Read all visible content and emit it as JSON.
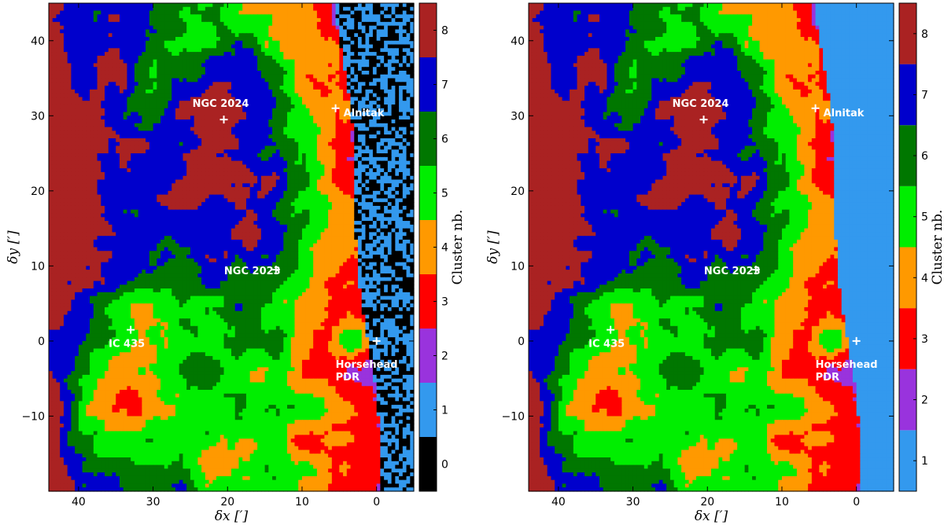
{
  "chart_data": [
    {
      "type": "heatmap",
      "panel": "left",
      "xlabel": "δx [′]",
      "ylabel": "δy [′]",
      "xlim": [
        44,
        -5
      ],
      "ylim": [
        -20,
        45
      ],
      "x_ticks": [
        40,
        30,
        20,
        10,
        0
      ],
      "y_ticks": [
        -10,
        0,
        10,
        20,
        30,
        40
      ],
      "x_tick_labels": [
        "40",
        "30",
        "20",
        "10",
        "0"
      ],
      "y_tick_labels": [
        "−10",
        "0",
        "10",
        "20",
        "30",
        "40"
      ],
      "colorbar": {
        "label": "Cluster nb.",
        "categories": [
          0,
          1,
          2,
          3,
          4,
          5,
          6,
          7,
          8
        ],
        "tick_labels": [
          "0",
          "1",
          "2",
          "3",
          "4",
          "5",
          "6",
          "7",
          "8"
        ],
        "colors": [
          "#000000",
          "#3399ee",
          "#9933dd",
          "#ff0000",
          "#ff9900",
          "#00ee00",
          "#007700",
          "#0000cc",
          "#aa2222"
        ]
      },
      "annotations": [
        {
          "label": "NGC 2024",
          "x": 20.5,
          "y": 29.5
        },
        {
          "label": "Alnitak",
          "x": 5.5,
          "y": 31
        },
        {
          "label": "NGC 2023",
          "x": 13.5,
          "y": 9.5
        },
        {
          "label": "IC 435",
          "x": 33,
          "y": 1.5
        },
        {
          "label": "Horsehead PDR",
          "label_lines": [
            "Horsehead",
            "PDR"
          ],
          "x": 0,
          "y": 0
        }
      ]
    },
    {
      "type": "heatmap",
      "panel": "right",
      "xlabel": "δx [′]",
      "ylabel": "δy [′]",
      "xlim": [
        44,
        -5
      ],
      "ylim": [
        -20,
        45
      ],
      "x_ticks": [
        40,
        30,
        20,
        10,
        0
      ],
      "y_ticks": [
        -10,
        0,
        10,
        20,
        30,
        40
      ],
      "x_tick_labels": [
        "40",
        "30",
        "20",
        "10",
        "0"
      ],
      "y_tick_labels": [
        "−10",
        "0",
        "10",
        "20",
        "30",
        "40"
      ],
      "colorbar": {
        "label": "Cluster nb.",
        "categories": [
          1,
          2,
          3,
          4,
          5,
          6,
          7,
          8
        ],
        "tick_labels": [
          "1",
          "2",
          "3",
          "4",
          "5",
          "6",
          "7",
          "8"
        ],
        "colors": [
          "#3399ee",
          "#9933dd",
          "#ff0000",
          "#ff9900",
          "#00ee00",
          "#007700",
          "#0000cc",
          "#aa2222"
        ]
      },
      "annotations": [
        {
          "label": "NGC 2024",
          "x": 20.5,
          "y": 29.5
        },
        {
          "label": "Alnitak",
          "x": 5.5,
          "y": 31
        },
        {
          "label": "NGC 2023",
          "x": 13.5,
          "y": 9.5
        },
        {
          "label": "IC 435",
          "x": 33,
          "y": 1.5
        },
        {
          "label": "Horsehead PDR",
          "label_lines": [
            "Horsehead",
            "PDR"
          ],
          "x": 0,
          "y": 0
        }
      ]
    }
  ]
}
